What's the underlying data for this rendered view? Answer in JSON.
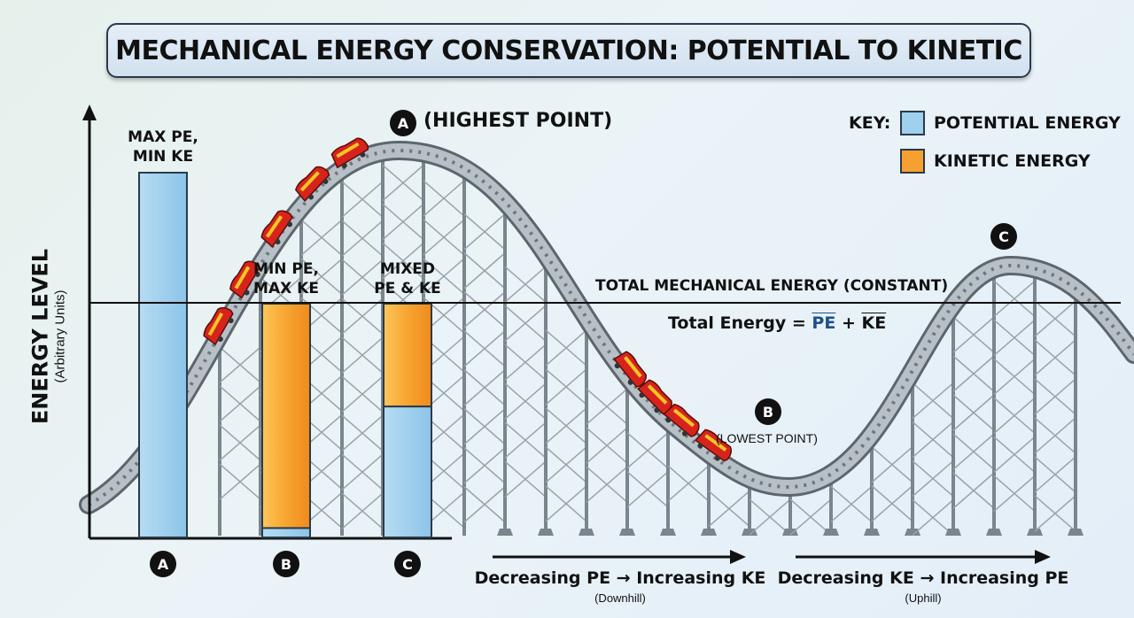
{
  "title": "MECHANICAL ENERGY CONSERVATION: POTENTIAL TO KINETIC",
  "y_axis": {
    "label": "ENERGY LEVEL",
    "sublabel": "(Arbitrary Units)"
  },
  "key": {
    "label": "KEY:",
    "items": [
      {
        "name": "POTENTIAL ENERGY",
        "color": "#9fd0ee"
      },
      {
        "name": "KINETIC ENERGY",
        "color": "#f5a030"
      }
    ]
  },
  "bars": [
    {
      "id": "A",
      "caption": [
        "MAX PE,",
        "MIN KE"
      ],
      "pe": 1.0,
      "ke": 0.0
    },
    {
      "id": "B",
      "caption": [
        "MIN PE,",
        "MAX KE"
      ],
      "pe": 0.04,
      "ke": 0.96
    },
    {
      "id": "C",
      "caption": [
        "MIXED",
        "PE & KE"
      ],
      "pe": 0.56,
      "ke": 0.44
    }
  ],
  "total_line": {
    "label": "TOTAL MECHANICAL ENERGY (CONSTANT)",
    "formula_prefix": "Total Energy = ",
    "formula_pe": "PE",
    "formula_plus": " + ",
    "formula_ke": "KE"
  },
  "points": {
    "A": {
      "letter": "A",
      "label": "(HIGHEST POINT)"
    },
    "B": {
      "letter": "B",
      "label": "(LOWEST POINT)"
    },
    "C": {
      "letter": "C"
    }
  },
  "arrows": [
    {
      "text": "Decreasing PE → Increasing KE",
      "sub": "(Downhill)"
    },
    {
      "text": "Decreasing KE → Increasing PE",
      "sub": "(Uphill)"
    }
  ],
  "colors": {
    "pe": "#9fd0ee",
    "ke": "#f5a030",
    "track": "#8d979f",
    "car": "#d8231d"
  }
}
